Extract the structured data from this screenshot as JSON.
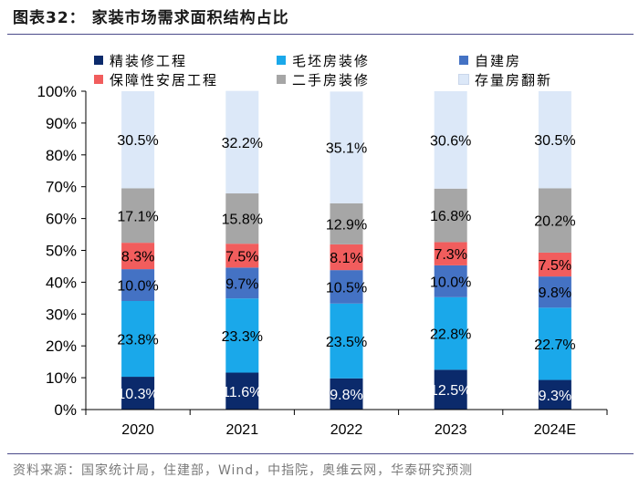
{
  "title": "图表32： 家装市场需求面积结构占比",
  "source": "资料来源：国家统计局，住建部，Wind，中指院，奥维云网，华泰研究预测",
  "chart_data": {
    "type": "bar",
    "stacked": true,
    "categories": [
      "2020",
      "2021",
      "2022",
      "2023",
      "2024E"
    ],
    "ylim": [
      0,
      100
    ],
    "yticks": [
      "0%",
      "10%",
      "20%",
      "30%",
      "40%",
      "50%",
      "60%",
      "70%",
      "80%",
      "90%",
      "100%"
    ],
    "series": [
      {
        "name": "精装修工程",
        "color": "#0b2a6b",
        "label_color": "#ffffff",
        "values": [
          10.3,
          11.6,
          9.8,
          12.5,
          9.3
        ],
        "labels": [
          "10.3%",
          "11.6%",
          "9.8%",
          "12.5%",
          "9.3%"
        ]
      },
      {
        "name": "毛坯房装修",
        "color": "#1aa8ea",
        "label_color": "#000000",
        "values": [
          23.8,
          23.3,
          23.5,
          22.8,
          22.7
        ],
        "labels": [
          "23.8%",
          "23.3%",
          "23.5%",
          "22.8%",
          "22.7%"
        ]
      },
      {
        "name": "自建房",
        "color": "#4472c4",
        "label_color": "#000000",
        "values": [
          10.0,
          9.7,
          10.5,
          10.0,
          9.8
        ],
        "labels": [
          "10.0%",
          "9.7%",
          "10.5%",
          "10.0%",
          "9.8%"
        ]
      },
      {
        "name": "保障性安居工程",
        "color": "#f15d5d",
        "label_color": "#000000",
        "values": [
          8.3,
          7.5,
          8.1,
          7.3,
          7.5
        ],
        "labels": [
          "8.3%",
          "7.5%",
          "8.1%",
          "7.3%",
          "7.5%"
        ]
      },
      {
        "name": "二手房装修",
        "color": "#a6a6a6",
        "label_color": "#000000",
        "values": [
          17.1,
          15.8,
          12.9,
          16.8,
          20.2
        ],
        "labels": [
          "17.1%",
          "15.8%",
          "12.9%",
          "16.8%",
          "20.2%"
        ]
      },
      {
        "name": "存量房翻新",
        "color": "#dce8f8",
        "label_color": "#000000",
        "values": [
          30.5,
          32.2,
          35.1,
          30.6,
          30.5
        ],
        "labels": [
          "30.5%",
          "32.2%",
          "35.1%",
          "30.6%",
          "30.5%"
        ]
      }
    ]
  }
}
